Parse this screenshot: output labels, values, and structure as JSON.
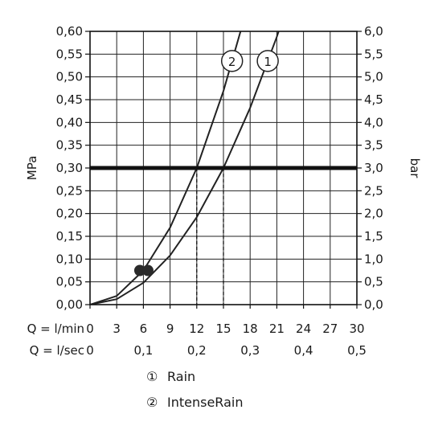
{
  "chart_data": {
    "type": "line",
    "x_axis_1": {
      "prefix": "Q = l/min",
      "ticks": [
        "0",
        "3",
        "6",
        "9",
        "12",
        "15",
        "18",
        "21",
        "24",
        "27",
        "30"
      ],
      "range": [
        0,
        30
      ]
    },
    "x_axis_2": {
      "prefix": "Q = l/sec",
      "ticks": [
        "0",
        "0,1",
        "0,2",
        "0,3",
        "0,4",
        "0,5"
      ],
      "values": [
        0,
        6,
        12,
        18,
        24,
        30
      ]
    },
    "y_left": {
      "label": "MPa",
      "range": [
        0,
        0.6
      ],
      "ticks": [
        "0,00",
        "0,05",
        "0,10",
        "0,15",
        "0,20",
        "0,25",
        "0,30",
        "0,35",
        "0,40",
        "0,45",
        "0,50",
        "0,55",
        "0,60"
      ]
    },
    "y_right": {
      "label": "bar",
      "ticks": [
        "0,0",
        "0,5",
        "1,0",
        "1,5",
        "2,0",
        "2,5",
        "3,0",
        "3,5",
        "4,0",
        "4,5",
        "5,0",
        "5,5",
        "6,0"
      ]
    },
    "reference_line": {
      "y": 0.3
    },
    "series": [
      {
        "marker": "1",
        "x": [
          0,
          3,
          6,
          9,
          12,
          15,
          18,
          21,
          22.5
        ],
        "y": [
          0,
          0.012,
          0.048,
          0.108,
          0.192,
          0.3,
          0.432,
          0.588,
          0.675
        ],
        "operating_point": {
          "x": 6.5,
          "y": 0.075
        },
        "drop_line_x": 15
      },
      {
        "marker": "2",
        "x": [
          0,
          3,
          6,
          9,
          12,
          15,
          17.8
        ],
        "y": [
          0,
          0.019,
          0.075,
          0.169,
          0.3,
          0.469,
          0.66
        ],
        "operating_point": {
          "x": 5.6,
          "y": 0.075
        },
        "drop_line_x": 12
      }
    ],
    "grid": true
  },
  "legend": {
    "items": [
      {
        "symbol": "①",
        "label": "Rain"
      },
      {
        "symbol": "②",
        "label": "IntenseRain"
      }
    ]
  }
}
